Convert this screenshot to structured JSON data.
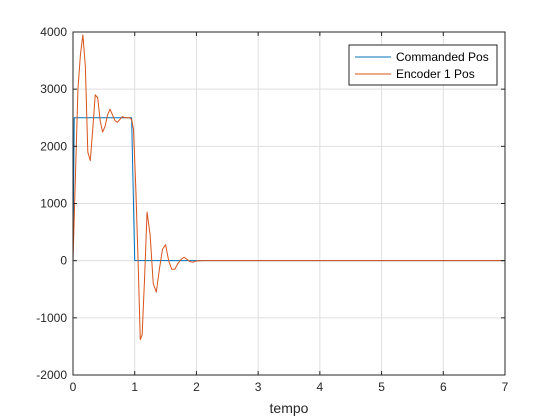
{
  "chart_data": {
    "type": "line",
    "title": "",
    "xlabel": "tempo",
    "ylabel": "",
    "xlim": [
      0,
      7
    ],
    "ylim": [
      -2000,
      4000
    ],
    "xticks": [
      0,
      1,
      2,
      3,
      4,
      5,
      6,
      7
    ],
    "yticks": [
      -2000,
      -1000,
      0,
      1000,
      2000,
      3000,
      4000
    ],
    "grid": true,
    "legend_position": "top-right",
    "series": [
      {
        "name": "Commanded Pos",
        "color": "#0072BD",
        "x": [
          0,
          0.02,
          0.95,
          1.0,
          7.0
        ],
        "y": [
          0,
          2500,
          2500,
          0,
          0
        ]
      },
      {
        "name": "Encoder 1 Pos",
        "color": "#D95319",
        "x": [
          0,
          0.04,
          0.08,
          0.12,
          0.16,
          0.2,
          0.24,
          0.28,
          0.32,
          0.36,
          0.4,
          0.44,
          0.48,
          0.52,
          0.56,
          0.6,
          0.64,
          0.68,
          0.72,
          0.76,
          0.8,
          0.84,
          0.88,
          0.92,
          0.95,
          0.98,
          1.02,
          1.06,
          1.09,
          1.12,
          1.16,
          1.2,
          1.25,
          1.3,
          1.35,
          1.4,
          1.45,
          1.5,
          1.55,
          1.6,
          1.65,
          1.7,
          1.75,
          1.8,
          1.85,
          1.9,
          1.95,
          2.0,
          2.1,
          2.2,
          2.5,
          3.0,
          7.0
        ],
        "y": [
          0,
          1500,
          3000,
          3600,
          3950,
          3400,
          1900,
          1750,
          2300,
          2900,
          2850,
          2450,
          2250,
          2350,
          2550,
          2650,
          2550,
          2450,
          2420,
          2470,
          2520,
          2500,
          2500,
          2500,
          2470,
          2300,
          1200,
          -200,
          -1380,
          -1300,
          -300,
          850,
          450,
          -400,
          -550,
          -150,
          200,
          280,
          0,
          -150,
          -150,
          -50,
          20,
          60,
          20,
          -20,
          -25,
          -5,
          0,
          0,
          0,
          0,
          0
        ]
      }
    ]
  }
}
